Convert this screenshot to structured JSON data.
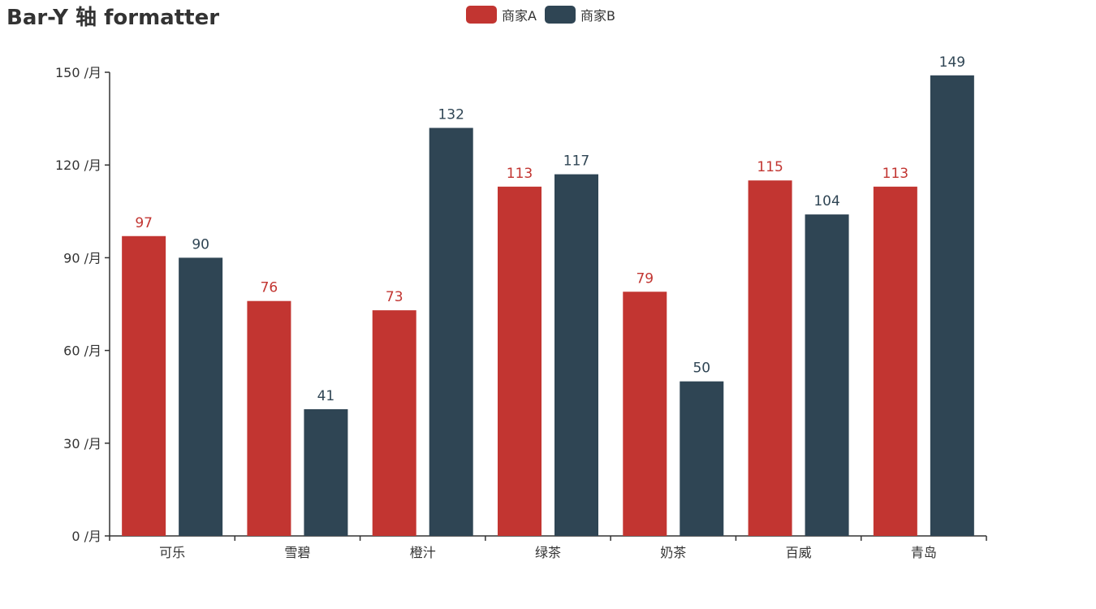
{
  "chart_data": {
    "type": "bar",
    "title": "Bar-Y 轴 formatter",
    "categories": [
      "可乐",
      "雪碧",
      "橙汁",
      "绿茶",
      "奶茶",
      "百威",
      "青岛"
    ],
    "series": [
      {
        "name": "商家A",
        "color": "#c23531",
        "values": [
          97,
          76,
          73,
          113,
          79,
          115,
          113
        ]
      },
      {
        "name": "商家B",
        "color": "#2f4554",
        "values": [
          90,
          41,
          132,
          117,
          50,
          104,
          149
        ]
      }
    ],
    "ylim": [
      0,
      150
    ],
    "y_ticks": [
      0,
      30,
      60,
      90,
      120,
      150
    ],
    "y_tick_labels": [
      "0 /月",
      "30 /月",
      "60 /月",
      "90 /月",
      "120 /月",
      "150 /月"
    ],
    "xlabel": "",
    "ylabel": "",
    "grid": false,
    "legend_position": "top-center"
  }
}
